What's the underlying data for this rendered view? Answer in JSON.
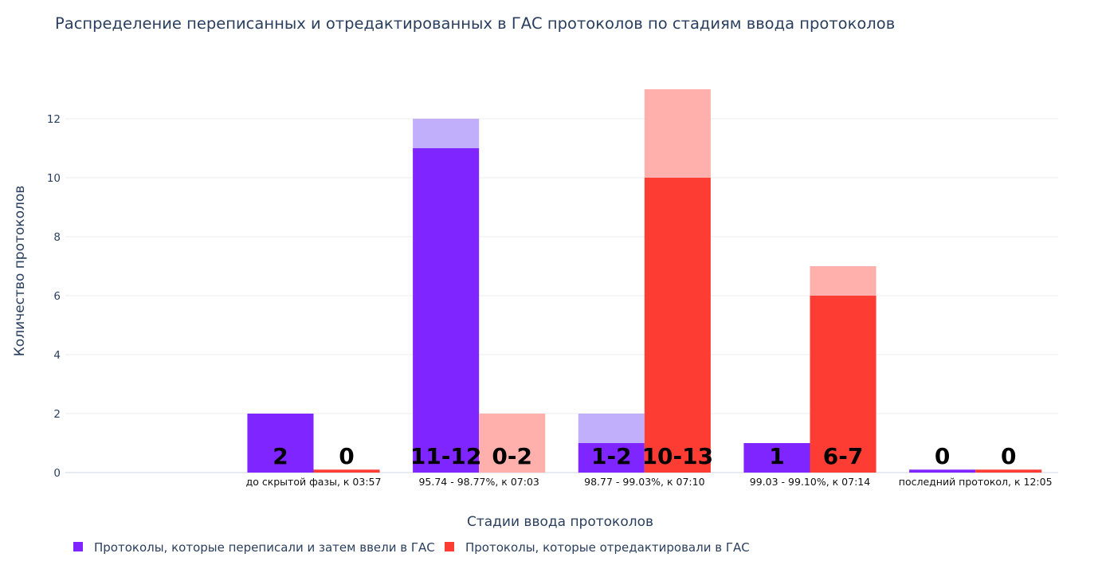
{
  "chart_data": {
    "type": "bar",
    "title": "Распределение переписанных и отредактированных в ГАС протоколов по стадиям ввода протоколов",
    "xlabel": "Стадии ввода протоколов",
    "ylabel": "Количество протоколов",
    "ylim": [
      0,
      13.0
    ],
    "yticks": [
      0,
      2,
      4,
      6,
      8,
      10,
      12
    ],
    "grid": true,
    "legend_position": "bottom-left",
    "categories": [
      "",
      "до скрытой фазы, к 03:57",
      "95.74 - 98.77%, к 07:03",
      "98.77 - 99.03%, к 07:10",
      "99.03 - 99.10%, к 07:14",
      "последний протокол, к 12:05"
    ],
    "series": [
      {
        "name": "Протоколы, которые переписали и затем ввели в ГАС",
        "color": "#7f25ff",
        "light_color": "#c2affc",
        "values_min": [
          null,
          2,
          11,
          1,
          1,
          0
        ],
        "values_max": [
          null,
          2,
          12,
          2,
          1,
          0
        ],
        "labels": [
          "",
          "2",
          "11-12",
          "1-2",
          "1",
          "0"
        ]
      },
      {
        "name": "Протоколы, которые отредактировали в ГАС",
        "color": "#fd3c33",
        "light_color": "#ffb0ad",
        "values_min": [
          null,
          0,
          0,
          10,
          6,
          0
        ],
        "values_max": [
          null,
          0,
          2,
          13,
          7,
          0
        ],
        "labels": [
          "",
          "0",
          "0-2",
          "10-13",
          "6-7",
          "0"
        ]
      }
    ]
  }
}
